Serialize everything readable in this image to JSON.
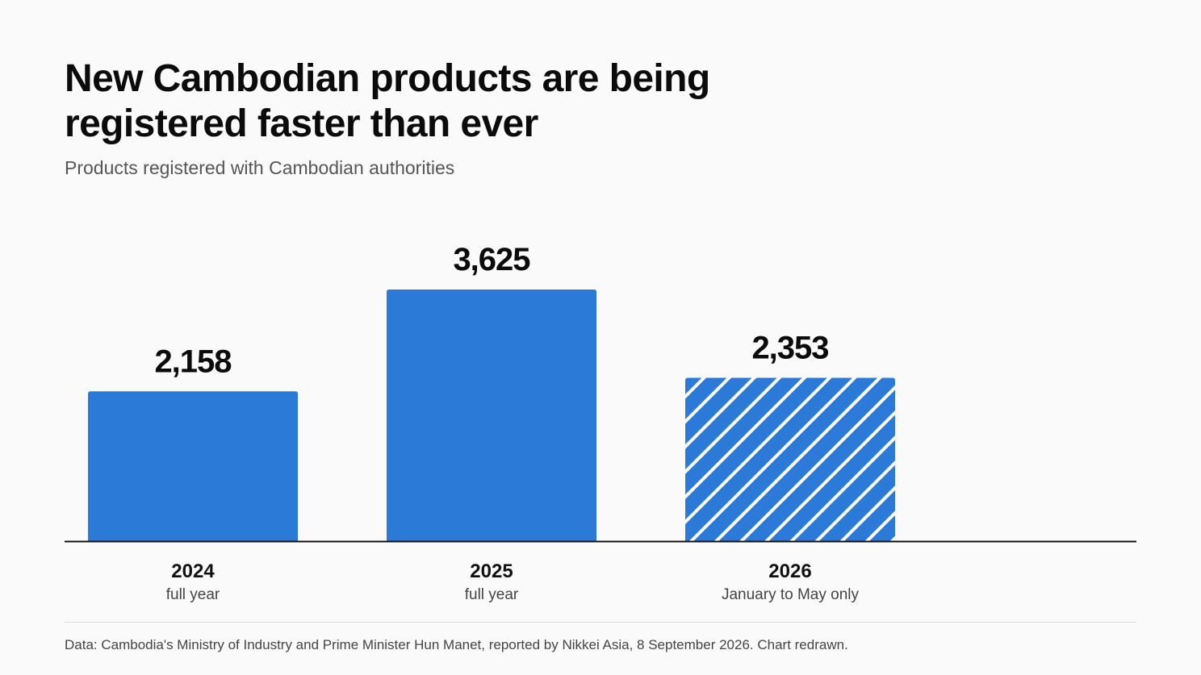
{
  "header": {
    "title": "New Cambodian products are being registered faster than ever",
    "subtitle": "Products registered with Cambodian authorities"
  },
  "footer": {
    "source": "Data: Cambodia's Ministry of Industry and Prime Minister Hun Manet, reported by Nikkei Asia, 8 September 2026. Chart redrawn."
  },
  "colors": {
    "bar": "#2b7ad7",
    "hatch": "#ffffff",
    "axis": "#111111"
  },
  "chart_data": {
    "type": "bar",
    "title": "New Cambodian products are being registered faster than ever",
    "subtitle": "Products registered with Cambodian authorities",
    "categories": [
      "2024",
      "2025",
      "2026"
    ],
    "category_sublabels": [
      "full year",
      "full year",
      "January to May only"
    ],
    "values": [
      2158,
      3625,
      2353
    ],
    "value_labels": [
      "2,158",
      "3,625",
      "2,353"
    ],
    "partial_period": [
      false,
      false,
      true
    ],
    "xlabel": "",
    "ylabel": "",
    "ylim": [
      0,
      3625
    ],
    "grid": false,
    "legend": "none"
  }
}
